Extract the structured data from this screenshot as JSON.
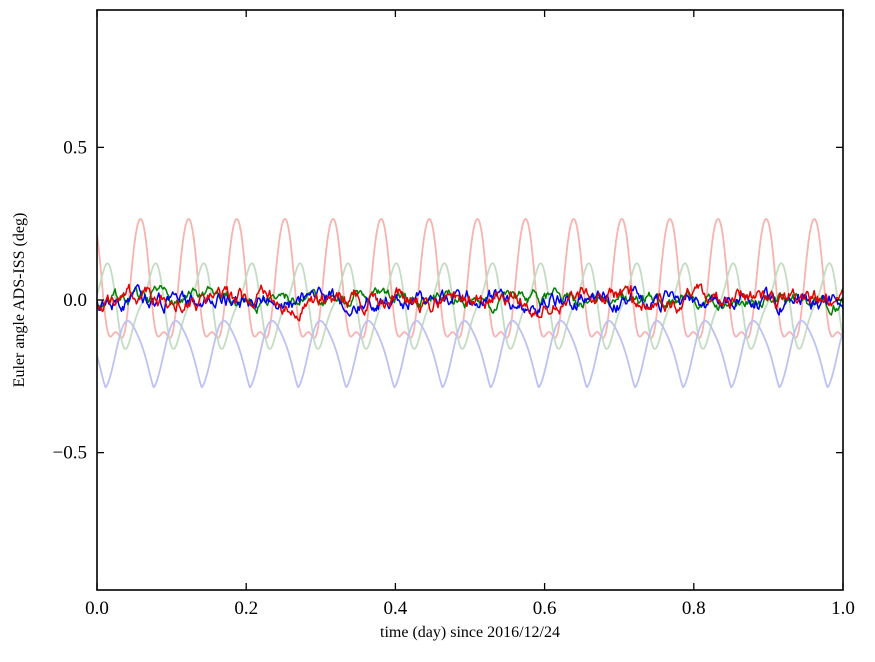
{
  "chart_data": {
    "type": "line",
    "title": "",
    "xlabel": "time (day) since 2016/12/24",
    "ylabel": "Euler angle ADS-ISS (deg)",
    "xlim": [
      0.0,
      1.0
    ],
    "ylim": [
      -0.95,
      0.95
    ],
    "xticks": [
      0.0,
      0.2,
      0.4,
      0.6,
      0.8,
      1.0
    ],
    "xtick_labels": [
      "0.0",
      "0.2",
      "0.4",
      "0.6",
      "0.8",
      "1.0"
    ],
    "yticks": [
      -0.5,
      0.0,
      0.5
    ],
    "ytick_labels": [
      "−0.5",
      "0.0",
      "0.5"
    ],
    "grid": false,
    "legend": "none",
    "frame_color": "#000000",
    "background_color": "#ffffff",
    "orbital_cycles_per_day": 15.5,
    "description": "Six time series over one day: three faded periodic curves oscillating at ~15.5 cycles/day (pale red peaks ~+0.28 / troughs ~-0.12, pale green between ~-0.15 and +0.13, pale blue between ~-0.28 and ~-0.07) and three bold noisy residual curves (red, green, blue) fluctuating within about +/-0.05 deg around 0.0, red with occasional spikes to ~+/-0.1",
    "series": [
      {
        "name": "faded-red-series",
        "color": "#f7b3ae",
        "width": 1.8,
        "model": {
          "kind": "pow_sine",
          "freq": 15.5,
          "offset": -0.12,
          "amp": 0.4,
          "power": 2.0,
          "phase": 2.2,
          "ripple_amp": 0.015,
          "ripple_mult": 3,
          "ripple_phase": 0.5,
          "samples": 1600
        }
      },
      {
        "name": "faded-green-series",
        "color": "#c3ddc3",
        "width": 1.8,
        "model": {
          "kind": "sine_sum",
          "freq": 15.5,
          "offset": -0.02,
          "a1": 0.125,
          "p1": 0.6,
          "a2": -0.035,
          "p2": 1.2,
          "samples": 1600
        }
      },
      {
        "name": "faded-blue-series",
        "color": "#bdc2f3",
        "width": 1.8,
        "model": {
          "kind": "pow_sine",
          "freq": 15.5,
          "offset": -0.285,
          "amp": 0.215,
          "power": 0.65,
          "phase": 3.6,
          "ripple_amp": 0.01,
          "ripple_mult": 2,
          "ripple_phase": 1.0,
          "samples": 1600
        }
      },
      {
        "name": "bold-green-series",
        "color": "#008000",
        "width": 1.5,
        "model": {
          "kind": "noise",
          "seed": 7,
          "amp": 0.1,
          "smooth": 0.85,
          "spike_prob": 0.0,
          "spike_amp": 0.0,
          "samples": 700
        }
      },
      {
        "name": "bold-blue-series",
        "color": "#0000ee",
        "width": 1.5,
        "model": {
          "kind": "noise",
          "seed": 13,
          "amp": 0.12,
          "smooth": 0.85,
          "spike_prob": 0.002,
          "spike_amp": 0.04,
          "samples": 700
        }
      },
      {
        "name": "bold-red-series",
        "color": "#e60000",
        "width": 1.5,
        "model": {
          "kind": "noise",
          "seed": 3,
          "amp": 0.13,
          "smooth": 0.85,
          "spike_prob": 0.006,
          "spike_amp": 0.08,
          "samples": 700
        }
      }
    ]
  }
}
